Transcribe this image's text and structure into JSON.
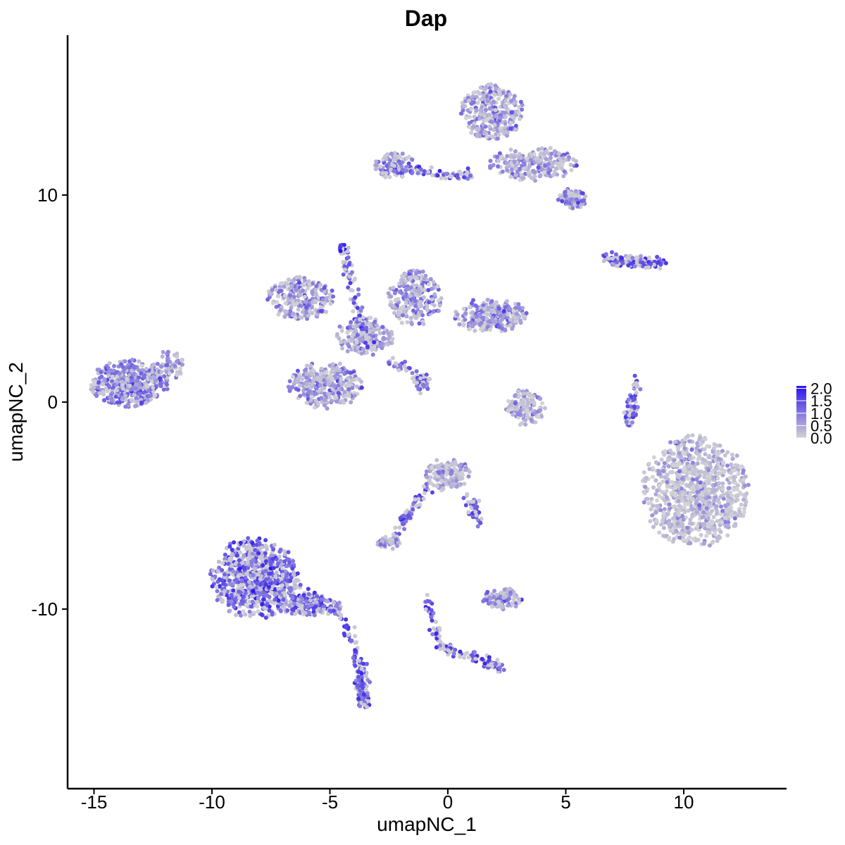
{
  "chart_data": {
    "type": "scatter",
    "title": "Dap",
    "xlabel": "umapNC_1",
    "ylabel": "umapNC_2",
    "xlim": [
      -16.5,
      14.5
    ],
    "ylim": [
      -17.7,
      17.6
    ],
    "x_ticks": [
      -15,
      -10,
      -5,
      0,
      5,
      10
    ],
    "x_tick_labels": [
      "-15",
      "-10",
      "-5",
      "0",
      "5",
      "10"
    ],
    "y_ticks": [
      -10,
      0,
      10
    ],
    "y_tick_labels": [
      "-10",
      "0",
      "10"
    ],
    "grid": false,
    "legend": {
      "placement": "right",
      "type": "colorbar",
      "min": 0.0,
      "max": 2.1,
      "ticks": [
        2.0,
        1.5,
        1.0,
        0.5,
        0.0
      ],
      "tick_labels": [
        "2.0",
        "1.5",
        "1.0",
        "0.5",
        "0.0"
      ]
    },
    "color_low": "#d3d3d3",
    "color_high": "#2b13ee",
    "point_count_per_cluster_note": "",
    "clusters": [
      {
        "id": "c1",
        "cx": -13.5,
        "cy": 0.9,
        "rx": 1.6,
        "ry": 1.1,
        "n": 420,
        "expr": 0.95
      },
      {
        "id": "c1b",
        "cx": -11.8,
        "cy": 1.8,
        "rx": 0.6,
        "ry": 0.7,
        "n": 60,
        "expr": 0.8
      },
      {
        "id": "c2",
        "cx": -8.2,
        "cy": -8.5,
        "rx": 1.8,
        "ry": 1.9,
        "n": 650,
        "expr": 1.25
      },
      {
        "id": "c2b",
        "cx": -5.8,
        "cy": -9.8,
        "rx": 1.3,
        "ry": 0.5,
        "n": 180,
        "expr": 1.1
      },
      {
        "id": "c2c",
        "cx": -3.6,
        "cy": -13.8,
        "rx": 0.3,
        "ry": 1.0,
        "n": 60,
        "expr": 1.0
      },
      {
        "id": "c3",
        "cx": -6.2,
        "cy": 5.0,
        "rx": 1.4,
        "ry": 1.0,
        "n": 260,
        "expr": 0.75
      },
      {
        "id": "c3b",
        "cx": -5.2,
        "cy": 0.8,
        "rx": 1.5,
        "ry": 1.1,
        "n": 320,
        "expr": 0.7
      },
      {
        "id": "c3c",
        "cx": -1.4,
        "cy": 5.0,
        "rx": 1.1,
        "ry": 1.3,
        "n": 240,
        "expr": 0.85
      },
      {
        "id": "c3d",
        "cx": 1.8,
        "cy": 4.2,
        "rx": 1.5,
        "ry": 0.8,
        "n": 250,
        "expr": 0.8
      },
      {
        "id": "c3e",
        "cx": -3.5,
        "cy": 3.2,
        "rx": 1.2,
        "ry": 0.9,
        "n": 200,
        "expr": 0.65
      },
      {
        "id": "c3f",
        "cx": -4.4,
        "cy": 7.4,
        "rx": 0.25,
        "ry": 0.25,
        "n": 20,
        "expr": 1.7
      },
      {
        "id": "c4",
        "cx": 1.9,
        "cy": 14.0,
        "rx": 1.3,
        "ry": 1.3,
        "n": 320,
        "expr": 0.65
      },
      {
        "id": "c4b",
        "cx": 3.6,
        "cy": 11.5,
        "rx": 1.8,
        "ry": 0.8,
        "n": 240,
        "expr": 0.6
      },
      {
        "id": "c4c",
        "cx": 5.3,
        "cy": 9.8,
        "rx": 0.6,
        "ry": 0.5,
        "n": 90,
        "expr": 1.0
      },
      {
        "id": "c4d",
        "cx": -2.2,
        "cy": 11.4,
        "rx": 0.9,
        "ry": 0.6,
        "n": 110,
        "expr": 0.85
      },
      {
        "id": "c5",
        "cx": 10.5,
        "cy": -4.3,
        "rx": 2.2,
        "ry": 2.6,
        "n": 900,
        "expr": 0.3
      },
      {
        "id": "c6",
        "cx": 0.0,
        "cy": -3.5,
        "rx": 0.9,
        "ry": 0.8,
        "n": 160,
        "expr": 0.45
      },
      {
        "id": "c7",
        "cx": 2.3,
        "cy": -9.5,
        "rx": 0.8,
        "ry": 0.5,
        "n": 100,
        "expr": 0.75
      },
      {
        "id": "c8",
        "cx": 3.3,
        "cy": -0.3,
        "rx": 0.8,
        "ry": 0.9,
        "n": 120,
        "expr": 0.55
      },
      {
        "id": "c9",
        "cx": 7.8,
        "cy": 6.8,
        "rx": 1.2,
        "ry": 0.25,
        "n": 70,
        "expr": 0.7
      },
      {
        "id": "c10",
        "cx": -2.5,
        "cy": -6.8,
        "rx": 0.5,
        "ry": 0.3,
        "n": 40,
        "expr": 0.7
      }
    ]
  }
}
